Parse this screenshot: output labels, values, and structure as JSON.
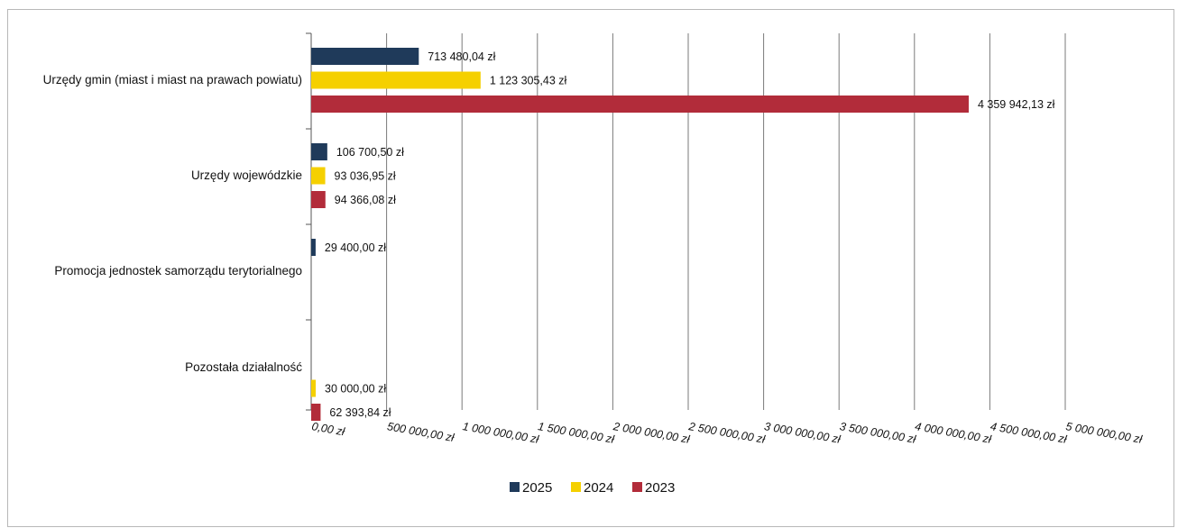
{
  "chart_data": {
    "type": "bar",
    "orientation": "horizontal",
    "categories": [
      "Urzędy gmin (miast i miast na prawach powiatu)",
      "Urzędy wojewódzkie",
      "Promocja jednostek samorządu terytorialnego",
      "Pozostała działalność"
    ],
    "series": [
      {
        "name": "2025",
        "color": "#1f3a5a",
        "values": [
          713480.04,
          106700.5,
          29400.0,
          null
        ],
        "labels": [
          "713 480,04 zł",
          "106 700,50 zł",
          "29 400,00 zł",
          ""
        ]
      },
      {
        "name": "2024",
        "color": "#f5d000",
        "values": [
          1123305.43,
          93036.95,
          null,
          30000.0
        ],
        "labels": [
          "1 123 305,43 zł",
          "93 036,95 zł",
          "",
          "30 000,00 zł"
        ]
      },
      {
        "name": "2023",
        "color": "#b22c3a",
        "values": [
          4359942.13,
          94366.08,
          null,
          62393.84
        ],
        "labels": [
          "4 359 942,13 zł",
          "94 366,08 zł",
          "",
          "62 393,84 zł"
        ]
      }
    ],
    "xlim": [
      0,
      5000000
    ],
    "xticks": [
      0,
      500000,
      1000000,
      1500000,
      2000000,
      2500000,
      3000000,
      3500000,
      4000000,
      4500000,
      5000000
    ],
    "xtick_labels": [
      "0,00 zł",
      "500 000,00 zł",
      "1 000 000,00 zł",
      "1 500 000,00 zł",
      "2 000 000,00 zł",
      "2 500 000,00 zł",
      "3 000 000,00 zł",
      "3 500 000,00 zł",
      "4 000 000,00 zł",
      "4 500 000,00 zł",
      "5 000 000,00 zł"
    ],
    "grid": "vertical",
    "legend_position": "bottom-center",
    "title": "",
    "xlabel": "",
    "ylabel": ""
  }
}
